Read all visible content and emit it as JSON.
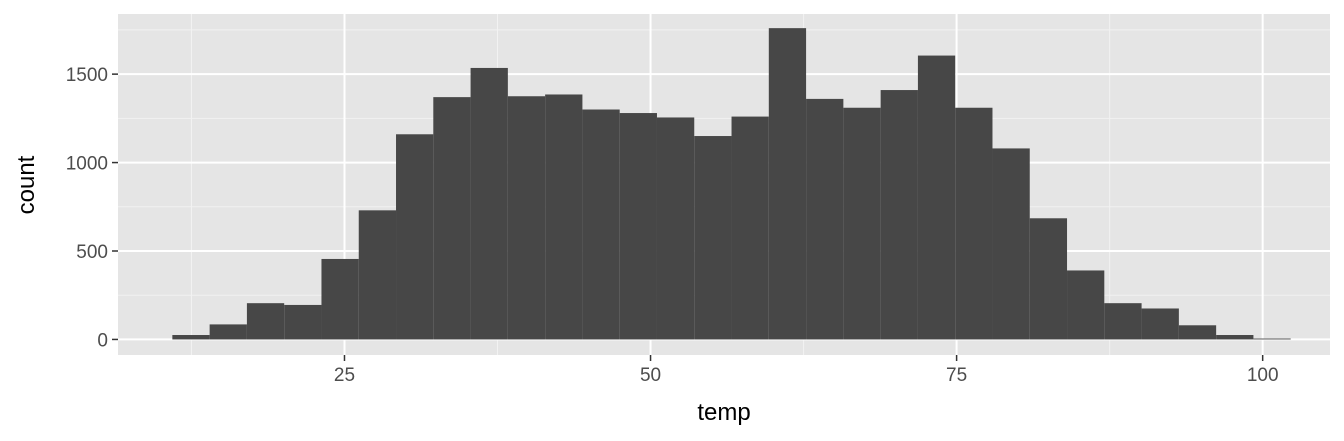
{
  "chart_data": {
    "type": "bar",
    "xlabel": "temp",
    "ylabel": "count",
    "xlim": [
      6.5,
      105.5
    ],
    "ylim": [
      -88,
      1840
    ],
    "x_ticks": [
      25,
      50,
      75,
      100
    ],
    "x_tick_labels": [
      "25",
      "50",
      "75",
      "100"
    ],
    "y_ticks": [
      0,
      500,
      1000,
      1500
    ],
    "y_tick_labels": [
      "0",
      "500",
      "1000",
      "1500"
    ],
    "grid": true,
    "bin_width": 3.045,
    "bin_left_edges": [
      10.94,
      13.985,
      17.03,
      20.075,
      23.12,
      26.165,
      29.21,
      32.255,
      35.3,
      38.345,
      41.39,
      44.435,
      47.48,
      50.525,
      53.57,
      56.615,
      59.66,
      62.705,
      65.75,
      68.795,
      71.84,
      74.885,
      77.93,
      80.975,
      84.02,
      87.065,
      90.11,
      93.155,
      96.2,
      99.245
    ],
    "counts": [
      25,
      85,
      205,
      195,
      455,
      730,
      1160,
      1370,
      1535,
      1375,
      1385,
      1300,
      1280,
      1255,
      1150,
      1260,
      1760,
      1360,
      1310,
      1410,
      1605,
      1310,
      1080,
      685,
      390,
      205,
      175,
      80,
      25,
      5
    ],
    "colors": {
      "panel_background": "#e5e5e5",
      "grid_major": "#ffffff",
      "grid_minor": "#f2f2f2",
      "bar_fill": "#474747",
      "tick_label": "#4d4d4d",
      "tick_mark": "#333333",
      "axis_title": "#000000"
    }
  }
}
